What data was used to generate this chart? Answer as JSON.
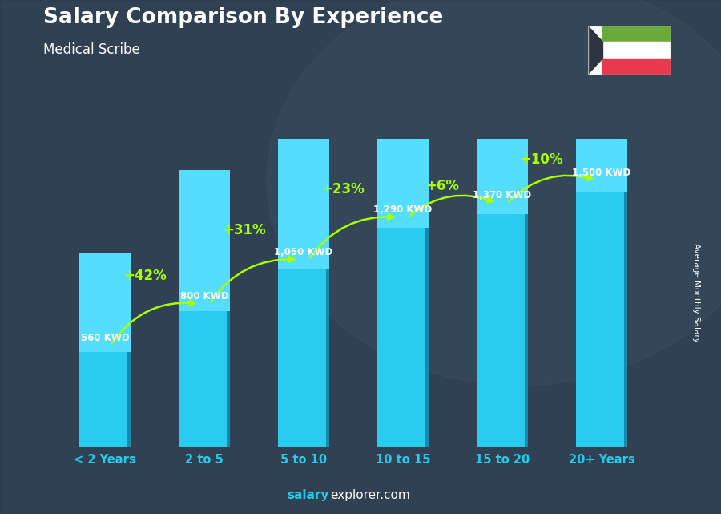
{
  "title": "Salary Comparison By Experience",
  "subtitle": "Medical Scribe",
  "categories": [
    "< 2 Years",
    "2 to 5",
    "5 to 10",
    "10 to 15",
    "15 to 20",
    "20+ Years"
  ],
  "values": [
    560,
    800,
    1050,
    1290,
    1370,
    1500
  ],
  "value_labels": [
    "560 KWD",
    "800 KWD",
    "1,050 KWD",
    "1,290 KWD",
    "1,370 KWD",
    "1,500 KWD"
  ],
  "pct_changes": [
    "+42%",
    "+31%",
    "+23%",
    "+6%",
    "+10%"
  ],
  "bar_color": "#29ccee",
  "bar_side_color": "#1a8aaa",
  "bar_top_color": "#55ddff",
  "bg_color": "#3a4a5a",
  "title_color": "#ffffff",
  "subtitle_color": "#ffffff",
  "label_color": "#ffffff",
  "pct_color": "#aaff00",
  "tick_color": "#22ccee",
  "watermark_bold": "salary",
  "watermark_normal": "explorer.com",
  "ylabel": "Average Monthly Salary",
  "ymax": 1750,
  "flag_green": "#6aaa3a",
  "flag_white": "#ffffff",
  "flag_red": "#e8394d",
  "flag_black": "#2d3540"
}
